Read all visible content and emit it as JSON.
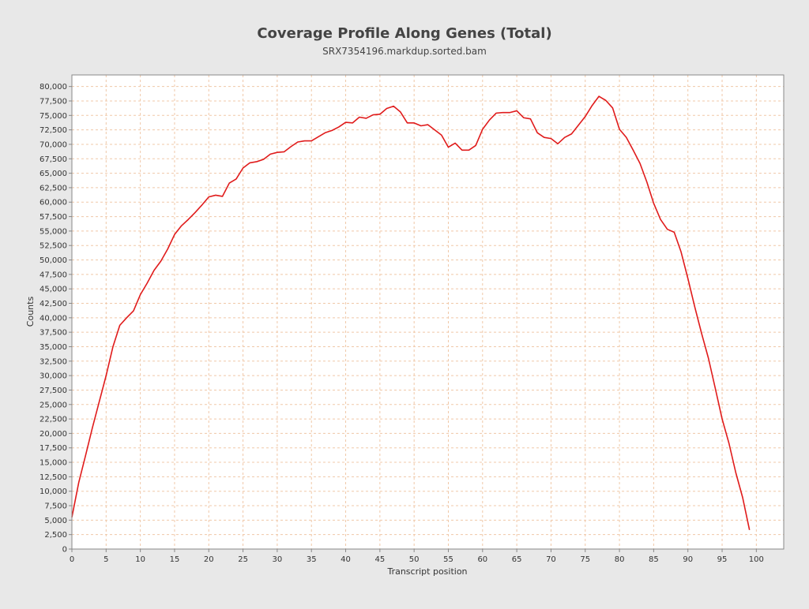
{
  "chart_data": {
    "type": "line",
    "title": "Coverage Profile Along Genes (Total)",
    "subtitle": "SRX7354196.markdup.sorted.bam",
    "xlabel": "Transcript position",
    "ylabel": "Counts",
    "xlim": [
      0,
      104
    ],
    "ylim": [
      0,
      82000
    ],
    "x_ticks": [
      0,
      5,
      10,
      15,
      20,
      25,
      30,
      35,
      40,
      45,
      50,
      55,
      60,
      65,
      70,
      75,
      80,
      85,
      90,
      95,
      100
    ],
    "x_tick_labels": [
      "0",
      "5",
      "10",
      "15",
      "20",
      "25",
      "30",
      "35",
      "40",
      "45",
      "50",
      "55",
      "60",
      "65",
      "70",
      "75",
      "80",
      "85",
      "90",
      "95",
      "100"
    ],
    "y_ticks": [
      0,
      2500,
      5000,
      7500,
      10000,
      12500,
      15000,
      17500,
      20000,
      22500,
      25000,
      27500,
      30000,
      32500,
      35000,
      37500,
      40000,
      42500,
      45000,
      47500,
      50000,
      52500,
      55000,
      57500,
      60000,
      62500,
      65000,
      67500,
      70000,
      72500,
      75000,
      77500,
      80000
    ],
    "y_tick_labels": [
      "0",
      "2,500",
      "5,000",
      "7,500",
      "10,000",
      "12,500",
      "15,000",
      "17,500",
      "20,000",
      "22,500",
      "25,000",
      "27,500",
      "30,000",
      "32,500",
      "35,000",
      "37,500",
      "40,000",
      "42,500",
      "45,000",
      "47,500",
      "50,000",
      "52,500",
      "55,000",
      "57,500",
      "60,000",
      "62,500",
      "65,000",
      "67,500",
      "70,000",
      "72,500",
      "75,000",
      "77,500",
      "80,000"
    ],
    "grid": true,
    "colors": {
      "line": "#e01b1b",
      "grid": "#f0c8a8",
      "plot_background": "#ffffff",
      "page_background": "#e8e8e8",
      "axis": "#888888"
    },
    "series": [
      {
        "x": [
          0,
          1,
          2,
          3,
          4,
          5,
          6,
          7,
          8,
          9,
          10,
          11,
          12,
          13,
          14,
          15,
          16,
          17,
          18,
          19,
          20,
          21,
          22,
          23,
          24,
          25,
          26,
          27,
          28,
          29,
          30,
          31,
          32,
          33,
          34,
          35,
          36,
          37,
          38,
          39,
          40,
          41,
          42,
          43,
          44,
          45,
          46,
          47,
          48,
          49,
          50,
          51,
          52,
          53,
          54,
          55,
          56,
          57,
          58,
          59,
          60,
          61,
          62,
          63,
          64,
          65,
          66,
          67,
          68,
          69,
          70,
          71,
          72,
          73,
          74,
          75,
          76,
          77,
          78,
          79,
          80,
          81,
          82,
          83,
          84,
          85,
          86,
          87,
          88,
          89,
          90,
          91,
          92,
          93,
          94,
          95,
          96,
          97,
          98,
          99
        ],
        "values": [
          5500,
          11500,
          16200,
          21000,
          25500,
          30000,
          35000,
          38700,
          40000,
          41200,
          44000,
          46000,
          48200,
          49800,
          51900,
          54400,
          55900,
          57000,
          58200,
          59500,
          60900,
          61200,
          61000,
          63300,
          64000,
          65900,
          66800,
          67000,
          67400,
          68300,
          68600,
          68700,
          69600,
          70400,
          70600,
          70600,
          71300,
          72000,
          72400,
          73000,
          73800,
          73700,
          74700,
          74500,
          75100,
          75200,
          76200,
          76600,
          75600,
          73700,
          73700,
          73200,
          73400,
          72500,
          71600,
          69500,
          70200,
          69000,
          69000,
          69800,
          72600,
          74200,
          75400,
          75500,
          75500,
          75800,
          74600,
          74400,
          72000,
          71200,
          71000,
          70100,
          71200,
          71800,
          73300,
          74800,
          76700,
          78300,
          77600,
          76300,
          72600,
          71200,
          69000,
          66700,
          63500,
          59800,
          57000,
          55300,
          54800,
          51400,
          46800,
          41900,
          37300,
          33000,
          27800,
          22500,
          18300,
          13200,
          8900,
          3300
        ]
      }
    ]
  }
}
